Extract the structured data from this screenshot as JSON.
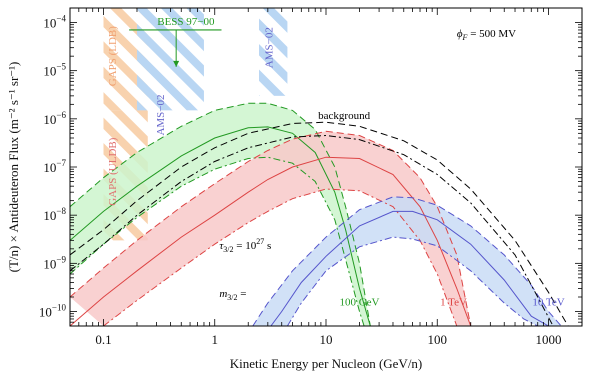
{
  "chart_data": {
    "type": "line",
    "title": "",
    "xlabel": "Kinetic Energy per Nucleon (GeV/n)",
    "ylabel": "(T/n) × Antideuteron Flux (m⁻² s⁻¹ sr⁻¹)",
    "x_scale": "log",
    "y_scale": "log",
    "xlim": [
      0.05,
      2000
    ],
    "ylim": [
      5e-11,
      0.0002
    ],
    "grid": false,
    "x_ticks": [
      {
        "v": 0.1,
        "label": "0.1"
      },
      {
        "v": 1,
        "label": "1"
      },
      {
        "v": 10,
        "label": "10"
      },
      {
        "v": 100,
        "label": "100"
      },
      {
        "v": 1000,
        "label": "1000"
      }
    ],
    "y_ticks": [
      {
        "v": 1e-10,
        "base": "10",
        "exp": "−10"
      },
      {
        "v": 1e-09,
        "base": "10",
        "exp": "−9"
      },
      {
        "v": 1e-08,
        "base": "10",
        "exp": "−8"
      },
      {
        "v": 1e-07,
        "base": "10",
        "exp": "−7"
      },
      {
        "v": 1e-06,
        "base": "10",
        "exp": "−6"
      },
      {
        "v": 1e-05,
        "base": "10",
        "exp": "−5"
      },
      {
        "v": 0.0001,
        "base": "10",
        "exp": "−4"
      }
    ],
    "annotations": {
      "phi": {
        "symbol": "ϕ",
        "sub": "F",
        "rest": " = 500 MV"
      },
      "tau": {
        "symbol": "τ",
        "sub": "3/2",
        "rest": " = 10",
        "sup": "27",
        "unit": " s"
      },
      "mass": {
        "symbol": "m",
        "sub": "3/2",
        "rest": " ="
      },
      "background": "background",
      "bess": "BESS 97−00",
      "gaps_ldb": "GAPS (LDB)",
      "gaps_uldb": "GAPS (ULDB)",
      "ams_upper": "AMS−02",
      "ams_lower": "AMS−02"
    },
    "colors": {
      "green": "#229922",
      "green_fill": "#cdf5cd",
      "red": "#dd4444",
      "red_fill": "#f8c9c9",
      "blue": "#5555cc",
      "blue_fill": "#c9dcf6",
      "black": "#000000",
      "gaps_hatch": "#f7caa0",
      "ams_hatch": "#b9d6f3"
    },
    "series": [
      {
        "name": "100 GeV",
        "color_key": "green",
        "central": {
          "x": [
            0.05,
            0.1,
            0.2,
            0.5,
            1,
            2,
            3,
            5,
            8,
            12,
            15,
            20,
            25
          ],
          "y": [
            3e-09,
            1.2e-08,
            4e-08,
            1.7e-07,
            4e-07,
            6.5e-07,
            6.8e-07,
            5e-07,
            2e-07,
            3e-08,
            5e-09,
            3e-10,
            5e-11
          ]
        },
        "upper": {
          "x": [
            0.05,
            0.1,
            0.2,
            0.5,
            1,
            2,
            3,
            5,
            8,
            12,
            15,
            20,
            25
          ],
          "y": [
            1.5e-08,
            6e-08,
            2e-07,
            7e-07,
            1.5e-06,
            2.1e-06,
            2.1e-06,
            1.5e-06,
            6e-07,
            1e-07,
            1.5e-08,
            1e-09,
            5e-11
          ]
        },
        "lower": {
          "x": [
            0.05,
            0.1,
            0.2,
            0.5,
            1,
            2,
            3,
            5,
            8,
            12,
            15,
            20,
            22
          ],
          "y": [
            6e-10,
            2.5e-09,
            9e-09,
            4e-08,
            9e-08,
            1.5e-07,
            1.6e-07,
            1.2e-07,
            5e-08,
            8e-09,
            1.2e-09,
            1e-10,
            5e-11
          ]
        }
      },
      {
        "name": "1 TeV",
        "color_key": "red",
        "central": {
          "x": [
            0.05,
            0.1,
            0.2,
            0.5,
            1,
            2,
            3,
            5,
            10,
            20,
            40,
            70,
            100,
            150,
            200
          ],
          "y": [
            5e-11,
            2e-10,
            7e-10,
            3.5e-09,
            1e-08,
            3e-08,
            5.5e-08,
            1e-07,
            1.6e-07,
            1.5e-07,
            7e-08,
            1.5e-08,
            3e-09,
            3e-10,
            5e-11
          ]
        },
        "upper": {
          "x": [
            0.05,
            0.1,
            0.2,
            0.5,
            1,
            2,
            3,
            5,
            10,
            20,
            40,
            70,
            100,
            150,
            200
          ],
          "y": [
            2e-10,
            8e-10,
            3e-09,
            1.5e-08,
            4.5e-08,
            1.3e-07,
            2.2e-07,
            3.8e-07,
            5.5e-07,
            4.5e-07,
            2.2e-07,
            6e-08,
            1.5e-08,
            1.5e-09,
            5e-11
          ]
        },
        "lower": {
          "x": [
            0.1,
            0.2,
            0.5,
            1,
            2,
            3,
            5,
            10,
            20,
            40,
            70,
            100,
            150
          ],
          "y": [
            5e-11,
            1.7e-10,
            8e-10,
            2.5e-09,
            7e-09,
            1.2e-08,
            2.2e-08,
            3.5e-08,
            3.2e-08,
            1.5e-08,
            3e-09,
            6e-10,
            5e-11
          ]
        }
      },
      {
        "name": "10 TeV",
        "color_key": "blue",
        "central": {
          "x": [
            3.2,
            4,
            6,
            10,
            20,
            40,
            60,
            100,
            200,
            400,
            700,
            1000
          ],
          "y": [
            5e-11,
            1e-10,
            4e-10,
            1.4e-09,
            6e-09,
            1.2e-08,
            1.2e-08,
            8e-09,
            2.5e-09,
            4.5e-10,
            8e-11,
            5e-11
          ]
        },
        "upper": {
          "x": [
            2.2,
            3,
            5,
            10,
            20,
            40,
            60,
            100,
            200,
            400,
            700,
            1000,
            1300
          ],
          "y": [
            5e-11,
            1.5e-10,
            7e-10,
            3.5e-09,
            1.3e-08,
            2.4e-08,
            2.3e-08,
            1.6e-08,
            6e-09,
            1.5e-09,
            3.5e-10,
            1e-10,
            5e-11
          ]
        },
        "lower": {
          "x": [
            4.5,
            6,
            10,
            20,
            40,
            60,
            100,
            200,
            400,
            600,
            800
          ],
          "y": [
            5e-11,
            1.5e-10,
            7e-10,
            2.2e-09,
            3.5e-09,
            3.2e-09,
            2.3e-09,
            7e-10,
            1.5e-10,
            7e-11,
            5e-11
          ]
        }
      }
    ],
    "background": {
      "upper": {
        "x": [
          0.05,
          0.1,
          0.2,
          0.5,
          1,
          2,
          5,
          10,
          20,
          50,
          100,
          200,
          500,
          1000,
          1500
        ],
        "y": [
          1.5e-09,
          5e-09,
          2e-08,
          1e-07,
          2.5e-07,
          5e-07,
          8e-07,
          8.5e-07,
          7e-07,
          3.5e-07,
          1.4e-07,
          3.5e-08,
          3e-09,
          2.5e-10,
          5e-11
        ]
      },
      "lower": {
        "x": [
          0.05,
          0.1,
          0.2,
          0.5,
          1,
          2,
          5,
          10,
          20,
          50,
          100,
          200,
          500,
          800,
          1100
        ],
        "y": [
          7e-10,
          2.5e-09,
          1e-08,
          5e-08,
          1.3e-07,
          2.5e-07,
          4.2e-07,
          4.5e-07,
          3.7e-07,
          1.8e-07,
          7e-08,
          1.8e-08,
          1.5e-09,
          2e-10,
          5e-11
        ]
      }
    },
    "bess_limit": {
      "x": [
        0.17,
        1.15
      ],
      "y": 7e-05,
      "arrow_x": 0.45,
      "arrow_to_y": 1.2e-05
    },
    "gaps_ldb": {
      "x": [
        0.1,
        0.25
      ],
      "y_top": 0.0002,
      "y_bottom": 1.5e-06
    },
    "gaps_uldb": {
      "x": [
        0.1,
        0.25
      ],
      "y_top": 1.5e-06,
      "y_bottom": 3e-09
    },
    "ams_hatches": [
      {
        "x": [
          0.2,
          0.8
        ]
      },
      {
        "x": [
          2.5,
          4.5
        ]
      }
    ],
    "labels": [
      {
        "key": "100 GeV",
        "color_key": "green",
        "x": 20,
        "y": 1e-10
      },
      {
        "key": "1 TeV",
        "color_key": "red",
        "x": 140,
        "y": 1e-10
      },
      {
        "key": "10 TeV",
        "color_key": "blue",
        "x": 1000,
        "y": 1e-10
      }
    ]
  }
}
